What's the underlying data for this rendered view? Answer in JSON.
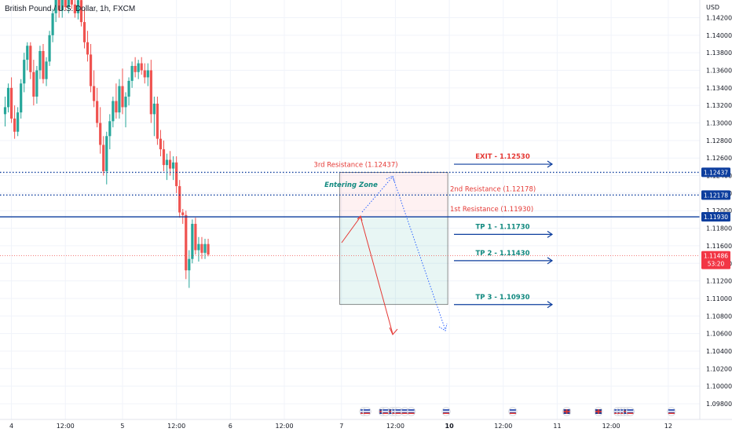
{
  "header": {
    "title": "British Pound / U.S. Dollar, 1h, FXCM",
    "currency": "USD"
  },
  "colors": {
    "up": "#26a69a",
    "down": "#ef5350",
    "blue": "#0d3e9e",
    "red_text": "#e53935",
    "teal_text": "#138a80",
    "red_badge": "#e63b3b",
    "price_badge": "#f23645"
  },
  "price_badge": {
    "price": "1.11486",
    "countdown": "53:20"
  },
  "level_badges": [
    "1.12437",
    "1.12178",
    "1.11930"
  ],
  "chart_data": {
    "type": "candlestick",
    "title": "British Pound / U.S. Dollar, 1h, FXCM",
    "ylim": [
      1.0966,
      1.1452
    ],
    "y_ticks": [
      "1.14200",
      "1.14000",
      "1.13800",
      "1.13600",
      "1.13400",
      "1.13200",
      "1.13000",
      "1.12800",
      "1.12600",
      "1.12400",
      "1.12200",
      "1.12000",
      "1.11800",
      "1.11600",
      "1.11400",
      "1.11200",
      "1.11000",
      "1.10800",
      "1.10600",
      "1.10400",
      "1.10200",
      "1.10000",
      "1.09800"
    ],
    "x_ticks": [
      "4",
      "12:00",
      "5",
      "12:00",
      "6",
      "12:00",
      "7",
      "12:00",
      "10",
      "12:00",
      "11",
      "12:00",
      "12"
    ],
    "x_tick_bars": [
      2,
      19,
      37,
      54,
      71,
      88,
      106,
      123,
      140,
      157,
      174,
      191,
      209
    ],
    "x_ticks_bold": [
      "10"
    ],
    "candles": [
      [
        1.131,
        1.133,
        1.1296,
        1.1318
      ],
      [
        1.1318,
        1.1345,
        1.1312,
        1.134
      ],
      [
        1.134,
        1.1352,
        1.13,
        1.1305
      ],
      [
        1.1305,
        1.132,
        1.1282,
        1.129
      ],
      [
        1.129,
        1.1318,
        1.1285,
        1.1312
      ],
      [
        1.1312,
        1.135,
        1.1305,
        1.1345
      ],
      [
        1.1345,
        1.138,
        1.1335,
        1.1372
      ],
      [
        1.1372,
        1.1392,
        1.136,
        1.1388
      ],
      [
        1.1388,
        1.1392,
        1.135,
        1.1358
      ],
      [
        1.1358,
        1.1372,
        1.132,
        1.133
      ],
      [
        1.133,
        1.1365,
        1.1322,
        1.136
      ],
      [
        1.136,
        1.1388,
        1.135,
        1.1382
      ],
      [
        1.1382,
        1.139,
        1.1345,
        1.135
      ],
      [
        1.135,
        1.1375,
        1.1342,
        1.137
      ],
      [
        1.137,
        1.1405,
        1.1365,
        1.14
      ],
      [
        1.14,
        1.143,
        1.1392,
        1.1425
      ],
      [
        1.1425,
        1.145,
        1.1415,
        1.1445
      ],
      [
        1.1445,
        1.1452,
        1.142,
        1.1428
      ],
      [
        1.1428,
        1.1452,
        1.142,
        1.1448
      ],
      [
        1.1448,
        1.1452,
        1.1428,
        1.1432
      ],
      [
        1.1432,
        1.145,
        1.1425,
        1.1445
      ],
      [
        1.1445,
        1.1452,
        1.143,
        1.1435
      ],
      [
        1.1435,
        1.1452,
        1.142,
        1.1425
      ],
      [
        1.1425,
        1.1445,
        1.1418,
        1.144
      ],
      [
        1.144,
        1.1452,
        1.141,
        1.1415
      ],
      [
        1.1415,
        1.143,
        1.1385,
        1.1392
      ],
      [
        1.1392,
        1.1405,
        1.137,
        1.1378
      ],
      [
        1.1378,
        1.139,
        1.1335,
        1.1342
      ],
      [
        1.1342,
        1.136,
        1.1318,
        1.1325
      ],
      [
        1.1325,
        1.134,
        1.1295,
        1.13
      ],
      [
        1.13,
        1.1318,
        1.1265,
        1.1275
      ],
      [
        1.1275,
        1.1285,
        1.124,
        1.1245
      ],
      [
        1.1245,
        1.129,
        1.123,
        1.1285
      ],
      [
        1.1285,
        1.131,
        1.127,
        1.1302
      ],
      [
        1.1302,
        1.133,
        1.1295,
        1.1325
      ],
      [
        1.1325,
        1.1345,
        1.1305,
        1.1312
      ],
      [
        1.1312,
        1.135,
        1.1305,
        1.1342
      ],
      [
        1.1342,
        1.1362,
        1.131,
        1.1318
      ],
      [
        1.1318,
        1.1335,
        1.1295,
        1.133
      ],
      [
        1.133,
        1.1352,
        1.132,
        1.1348
      ],
      [
        1.1348,
        1.137,
        1.134,
        1.1365
      ],
      [
        1.1365,
        1.1375,
        1.1352,
        1.1358
      ],
      [
        1.1358,
        1.1372,
        1.135,
        1.1368
      ],
      [
        1.1368,
        1.1375,
        1.1355,
        1.136
      ],
      [
        1.136,
        1.1368,
        1.1345,
        1.1352
      ],
      [
        1.1352,
        1.1368,
        1.1342,
        1.136
      ],
      [
        1.136,
        1.1372,
        1.13,
        1.131
      ],
      [
        1.131,
        1.133,
        1.1285,
        1.1322
      ],
      [
        1.1322,
        1.133,
        1.1275,
        1.1282
      ],
      [
        1.1282,
        1.1292,
        1.1262,
        1.127
      ],
      [
        1.127,
        1.128,
        1.1245,
        1.1252
      ],
      [
        1.1252,
        1.1265,
        1.1235,
        1.1258
      ],
      [
        1.1258,
        1.1268,
        1.124,
        1.1248
      ],
      [
        1.1248,
        1.1262,
        1.1235,
        1.1255
      ],
      [
        1.1255,
        1.1262,
        1.122,
        1.1228
      ],
      [
        1.1228,
        1.1235,
        1.1192,
        1.1198
      ],
      [
        1.1198,
        1.1202,
        1.1185,
        1.1195
      ],
      [
        1.1195,
        1.12,
        1.1122,
        1.1132
      ],
      [
        1.1132,
        1.1155,
        1.1112,
        1.1145
      ],
      [
        1.1145,
        1.119,
        1.114,
        1.1185
      ],
      [
        1.1185,
        1.1192,
        1.115,
        1.1155
      ],
      [
        1.1155,
        1.117,
        1.1142,
        1.1162
      ],
      [
        1.1162,
        1.117,
        1.1145,
        1.1152
      ],
      [
        1.1152,
        1.1168,
        1.1145,
        1.1162
      ],
      [
        1.1162,
        1.1168,
        1.1148,
        1.115
      ]
    ],
    "levels": [
      {
        "price": 1.12437,
        "style": "dotted"
      },
      {
        "price": 1.12178,
        "style": "dotted"
      },
      {
        "price": 1.1193,
        "style": "solid"
      }
    ],
    "annotations": {
      "entering_zone": "Entering Zone",
      "res3": "3rd Resistance (1.12437)",
      "res2": "2nd Resistance (1.12178)",
      "res1": "1st Resistance (1.11930)",
      "exit": "EXIT - 1.12530",
      "tp1": "TP 1 - 1.11730",
      "tp2": "TP 2 - 1.11430",
      "tp3": "TP 3 - 1.10930"
    },
    "zones": {
      "red": {
        "top": 1.12437,
        "bottom": 1.1193
      },
      "teal": {
        "top": 1.1193,
        "bottom": 1.1093
      }
    },
    "arrows": {
      "exit": 1.1253,
      "tp1": 1.1173,
      "tp2": 1.1143,
      "tp3": 1.1093
    },
    "event_icons": [
      {
        "bar": 113,
        "flag": "us"
      },
      {
        "bar": 114,
        "flag": "us"
      },
      {
        "bar": 119,
        "flag": "uk"
      },
      {
        "bar": 120,
        "flag": "us"
      },
      {
        "bar": 122,
        "flag": "uk"
      },
      {
        "bar": 123,
        "flag": "us"
      },
      {
        "bar": 124,
        "flag": "us"
      },
      {
        "bar": 126,
        "flag": "us"
      },
      {
        "bar": 128,
        "flag": "us"
      },
      {
        "bar": 139,
        "flag": "us"
      },
      {
        "bar": 160,
        "flag": "us"
      },
      {
        "bar": 177,
        "flag": "uk"
      },
      {
        "bar": 187,
        "flag": "uk"
      },
      {
        "bar": 193,
        "flag": "us"
      },
      {
        "bar": 194,
        "flag": "us"
      },
      {
        "bar": 195,
        "flag": "us"
      },
      {
        "bar": 196,
        "flag": "uk"
      },
      {
        "bar": 197,
        "flag": "us"
      },
      {
        "bar": 210,
        "flag": "us"
      },
      {
        "bar": 221,
        "flag": "uk"
      },
      {
        "bar": 222,
        "flag": "us"
      }
    ]
  }
}
